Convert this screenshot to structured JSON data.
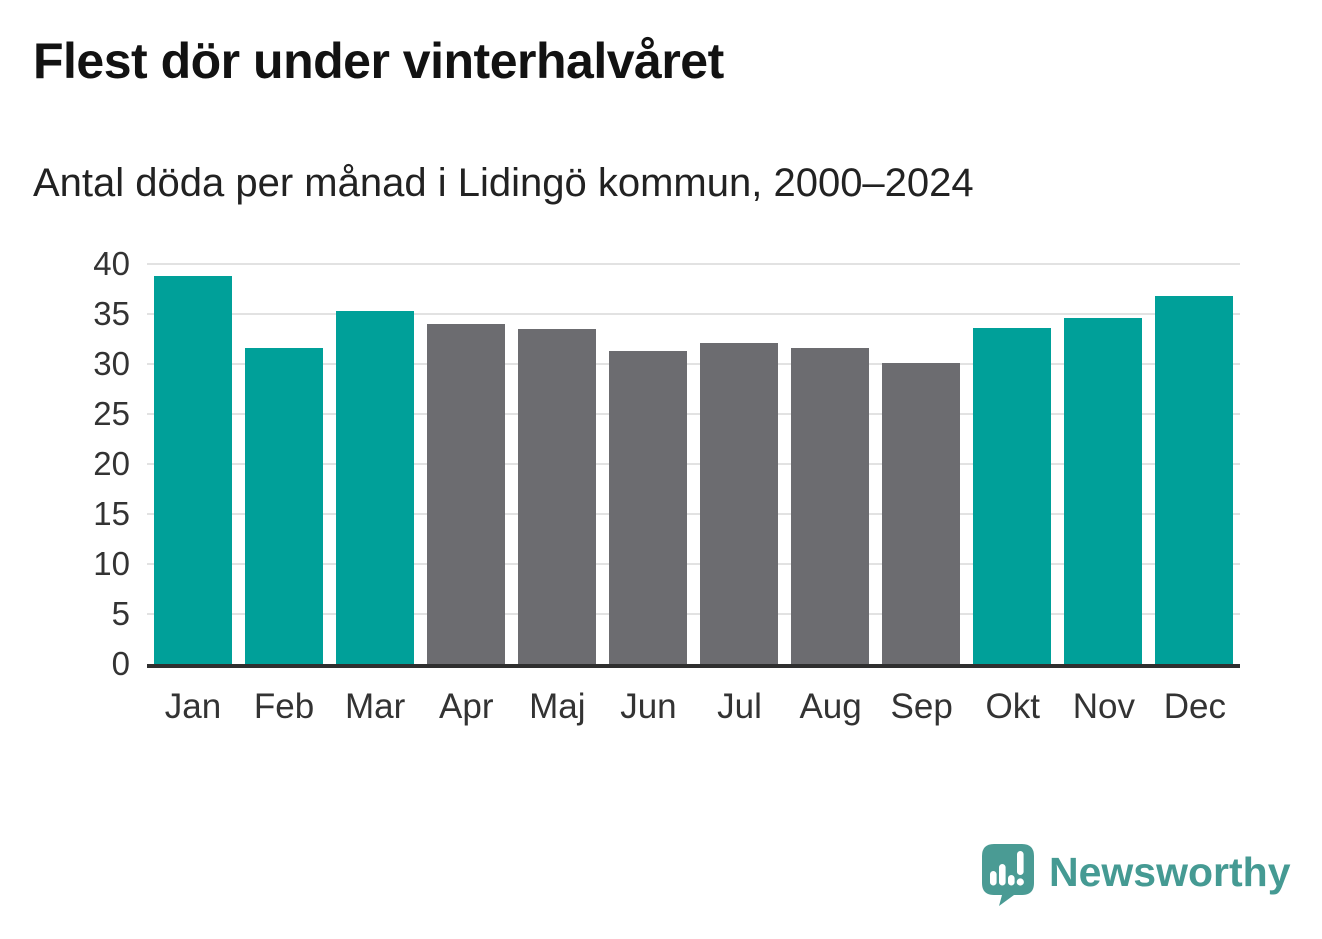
{
  "header": {
    "title": "Flest dör under vinterhalvåret",
    "subtitle": "Antal döda per månad i Lidingö kommun, 2000–2024"
  },
  "chart_data": {
    "type": "bar",
    "title": "Flest dör under vinterhalvåret",
    "subtitle": "Antal döda per månad i Lidingö kommun, 2000–2024",
    "categories": [
      "Jan",
      "Feb",
      "Mar",
      "Apr",
      "Maj",
      "Jun",
      "Jul",
      "Aug",
      "Sep",
      "Okt",
      "Nov",
      "Dec"
    ],
    "values": [
      38.8,
      31.6,
      35.3,
      34.0,
      33.5,
      31.3,
      32.1,
      31.6,
      30.1,
      33.6,
      34.6,
      36.8
    ],
    "bar_groups": [
      "winter",
      "winter",
      "winter",
      "summer",
      "summer",
      "summer",
      "summer",
      "summer",
      "summer",
      "winter",
      "winter",
      "winter"
    ],
    "group_colors": {
      "winter": "#00a099",
      "summer": "#6c6c70"
    },
    "xlabel": "",
    "ylabel": "",
    "ylim": [
      0,
      40
    ],
    "yticks": [
      0,
      5,
      10,
      15,
      20,
      25,
      30,
      35,
      40
    ],
    "grid": "horizontal-only",
    "legend": "none",
    "axis_color": "#2f2f2f",
    "gridline_color": "#e2e2e2",
    "tick_label_color": "#333333"
  },
  "footer": {
    "brand": "Newsworthy",
    "brand_color": "#459a93",
    "logo_icon": "bar-chart-speech-bubble"
  }
}
